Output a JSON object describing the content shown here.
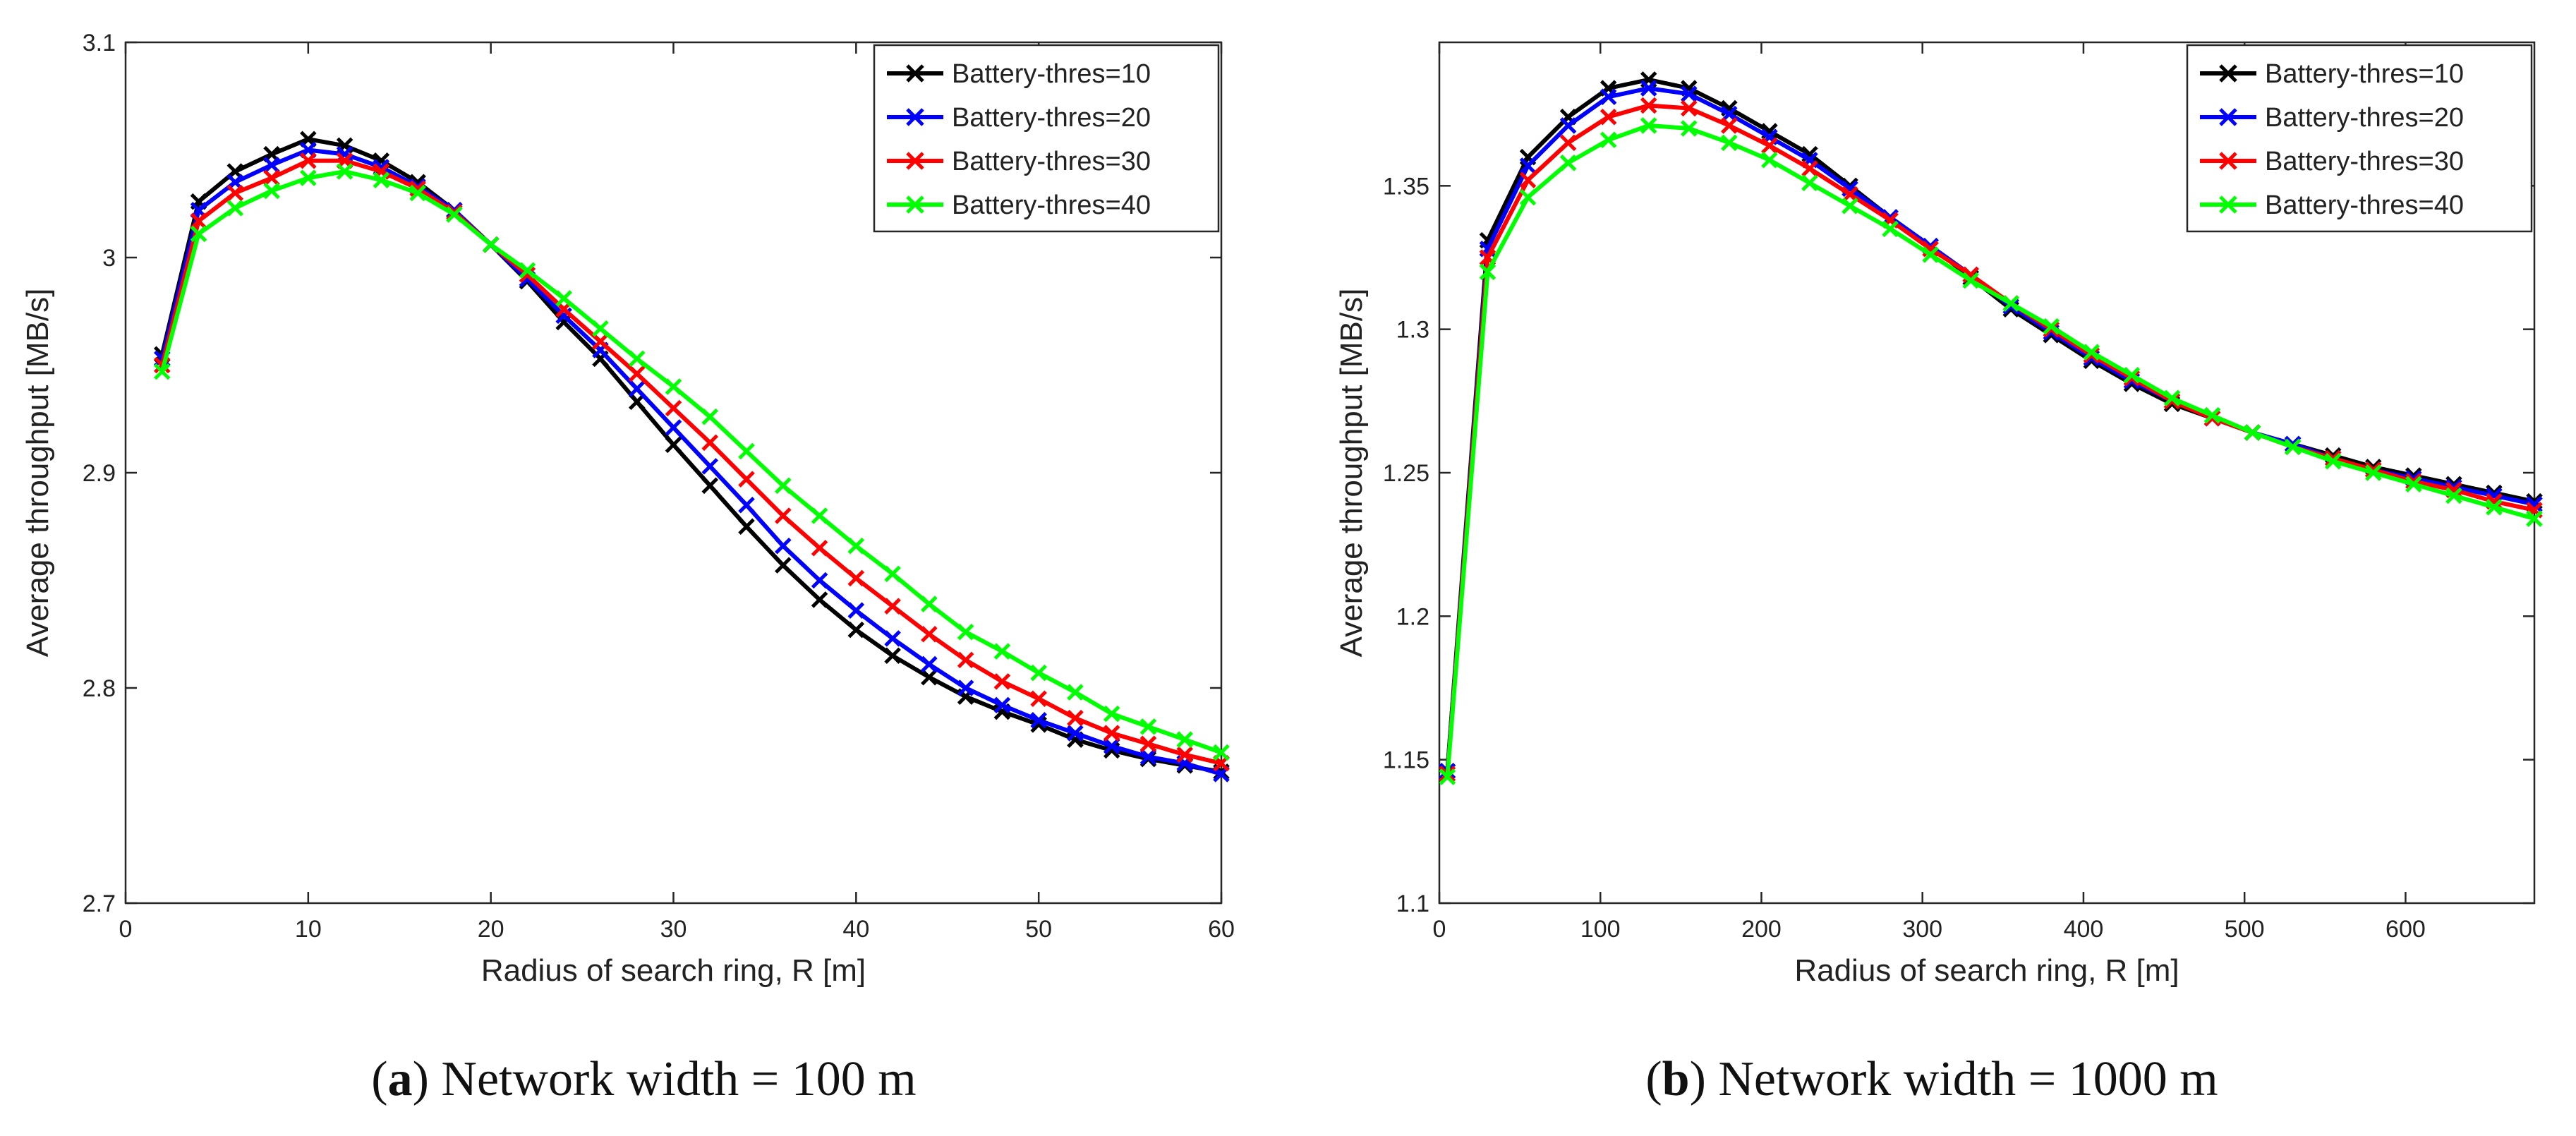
{
  "figure": {
    "captions": [
      {
        "letter": "a",
        "text": "Network width = 100 m"
      },
      {
        "letter": "b",
        "text": "Network width = 1000 m"
      }
    ]
  },
  "colors": {
    "Battery-thres=10": "#000000",
    "Battery-thres=20": "#0000ff",
    "Battery-thres=30": "#ff0000",
    "Battery-thres=40": "#00ff00"
  },
  "chart_data": [
    {
      "type": "line",
      "xlabel": "Radius of search ring, R [m]",
      "ylabel": "Average throughput [MB/s]",
      "xlim": [
        0,
        60
      ],
      "ylim": [
        2.7,
        3.1
      ],
      "xticks": [
        0,
        10,
        20,
        30,
        40,
        50,
        60
      ],
      "yticks": [
        2.7,
        2.8,
        2.9,
        3,
        3.1
      ],
      "ytick_labels": [
        "2.7",
        "2.8",
        "2.9",
        "3",
        "3.1"
      ],
      "legend_position": "top-right",
      "marker": "x",
      "x": [
        2,
        4,
        6,
        8,
        10,
        12,
        14,
        16,
        18,
        20,
        22,
        24,
        26,
        28,
        30,
        32,
        34,
        36,
        38,
        40,
        42,
        44,
        46,
        48,
        50,
        52,
        54,
        56,
        58,
        60
      ],
      "series": [
        {
          "name": "Battery-thres=10",
          "values": [
            2.955,
            3.026,
            3.04,
            3.048,
            3.055,
            3.052,
            3.045,
            3.035,
            3.022,
            3.006,
            2.989,
            2.97,
            2.953,
            2.933,
            2.913,
            2.894,
            2.875,
            2.857,
            2.841,
            2.827,
            2.815,
            2.805,
            2.796,
            2.789,
            2.783,
            2.776,
            2.771,
            2.767,
            2.764,
            2.761
          ]
        },
        {
          "name": "Battery-thres=20",
          "values": [
            2.953,
            3.022,
            3.035,
            3.043,
            3.05,
            3.048,
            3.042,
            3.033,
            3.022,
            3.006,
            2.99,
            2.973,
            2.957,
            2.939,
            2.921,
            2.903,
            2.885,
            2.866,
            2.85,
            2.836,
            2.823,
            2.811,
            2.8,
            2.792,
            2.785,
            2.779,
            2.773,
            2.768,
            2.765,
            2.76
          ]
        },
        {
          "name": "Battery-thres=30",
          "values": [
            2.95,
            3.017,
            3.03,
            3.037,
            3.045,
            3.045,
            3.04,
            3.032,
            3.021,
            3.006,
            2.992,
            2.976,
            2.961,
            2.946,
            2.93,
            2.914,
            2.897,
            2.88,
            2.865,
            2.851,
            2.838,
            2.825,
            2.813,
            2.803,
            2.795,
            2.786,
            2.779,
            2.774,
            2.769,
            2.765
          ]
        },
        {
          "name": "Battery-thres=40",
          "values": [
            2.947,
            3.011,
            3.023,
            3.031,
            3.037,
            3.04,
            3.036,
            3.03,
            3.02,
            3.006,
            2.994,
            2.981,
            2.967,
            2.953,
            2.94,
            2.926,
            2.91,
            2.894,
            2.88,
            2.866,
            2.853,
            2.839,
            2.826,
            2.817,
            2.807,
            2.798,
            2.788,
            2.782,
            2.776,
            2.77
          ]
        }
      ]
    },
    {
      "type": "line",
      "xlabel": "Radius of search ring, R [m]",
      "ylabel": "Average throughput [MB/s]",
      "xlim": [
        0,
        680
      ],
      "ylim": [
        1.1,
        1.4
      ],
      "xticks": [
        0,
        100,
        200,
        300,
        400,
        500,
        600
      ],
      "yticks": [
        1.1,
        1.15,
        1.2,
        1.25,
        1.3,
        1.35
      ],
      "ytick_labels": [
        "1.1",
        "1.15",
        "1.2",
        "1.25",
        "1.3",
        "1.35"
      ],
      "legend_position": "top-right",
      "marker": "x",
      "x": [
        5,
        30,
        55,
        80,
        105,
        130,
        155,
        180,
        205,
        230,
        255,
        280,
        305,
        330,
        355,
        380,
        405,
        430,
        455,
        480,
        505,
        530,
        555,
        580,
        605,
        630,
        655,
        680
      ],
      "series": [
        {
          "name": "Battery-thres=10",
          "values": [
            1.146,
            1.331,
            1.36,
            1.374,
            1.384,
            1.387,
            1.384,
            1.377,
            1.369,
            1.361,
            1.35,
            1.339,
            1.329,
            1.318,
            1.307,
            1.298,
            1.289,
            1.281,
            1.274,
            1.269,
            1.264,
            1.26,
            1.256,
            1.252,
            1.249,
            1.246,
            1.243,
            1.24
          ]
        },
        {
          "name": "Battery-thres=20",
          "values": [
            1.146,
            1.328,
            1.357,
            1.371,
            1.381,
            1.384,
            1.382,
            1.375,
            1.367,
            1.359,
            1.349,
            1.339,
            1.329,
            1.319,
            1.308,
            1.299,
            1.29,
            1.282,
            1.275,
            1.269,
            1.264,
            1.26,
            1.255,
            1.251,
            1.248,
            1.245,
            1.242,
            1.239
          ]
        },
        {
          "name": "Battery-thres=30",
          "values": [
            1.145,
            1.325,
            1.352,
            1.365,
            1.374,
            1.378,
            1.377,
            1.371,
            1.364,
            1.356,
            1.347,
            1.338,
            1.328,
            1.319,
            1.309,
            1.3,
            1.291,
            1.283,
            1.275,
            1.269,
            1.264,
            1.259,
            1.255,
            1.251,
            1.247,
            1.244,
            1.24,
            1.237
          ]
        },
        {
          "name": "Battery-thres=40",
          "values": [
            1.144,
            1.32,
            1.346,
            1.358,
            1.366,
            1.371,
            1.37,
            1.365,
            1.359,
            1.351,
            1.343,
            1.335,
            1.326,
            1.317,
            1.309,
            1.301,
            1.292,
            1.284,
            1.276,
            1.27,
            1.264,
            1.259,
            1.254,
            1.25,
            1.246,
            1.242,
            1.238,
            1.234
          ]
        }
      ]
    }
  ]
}
